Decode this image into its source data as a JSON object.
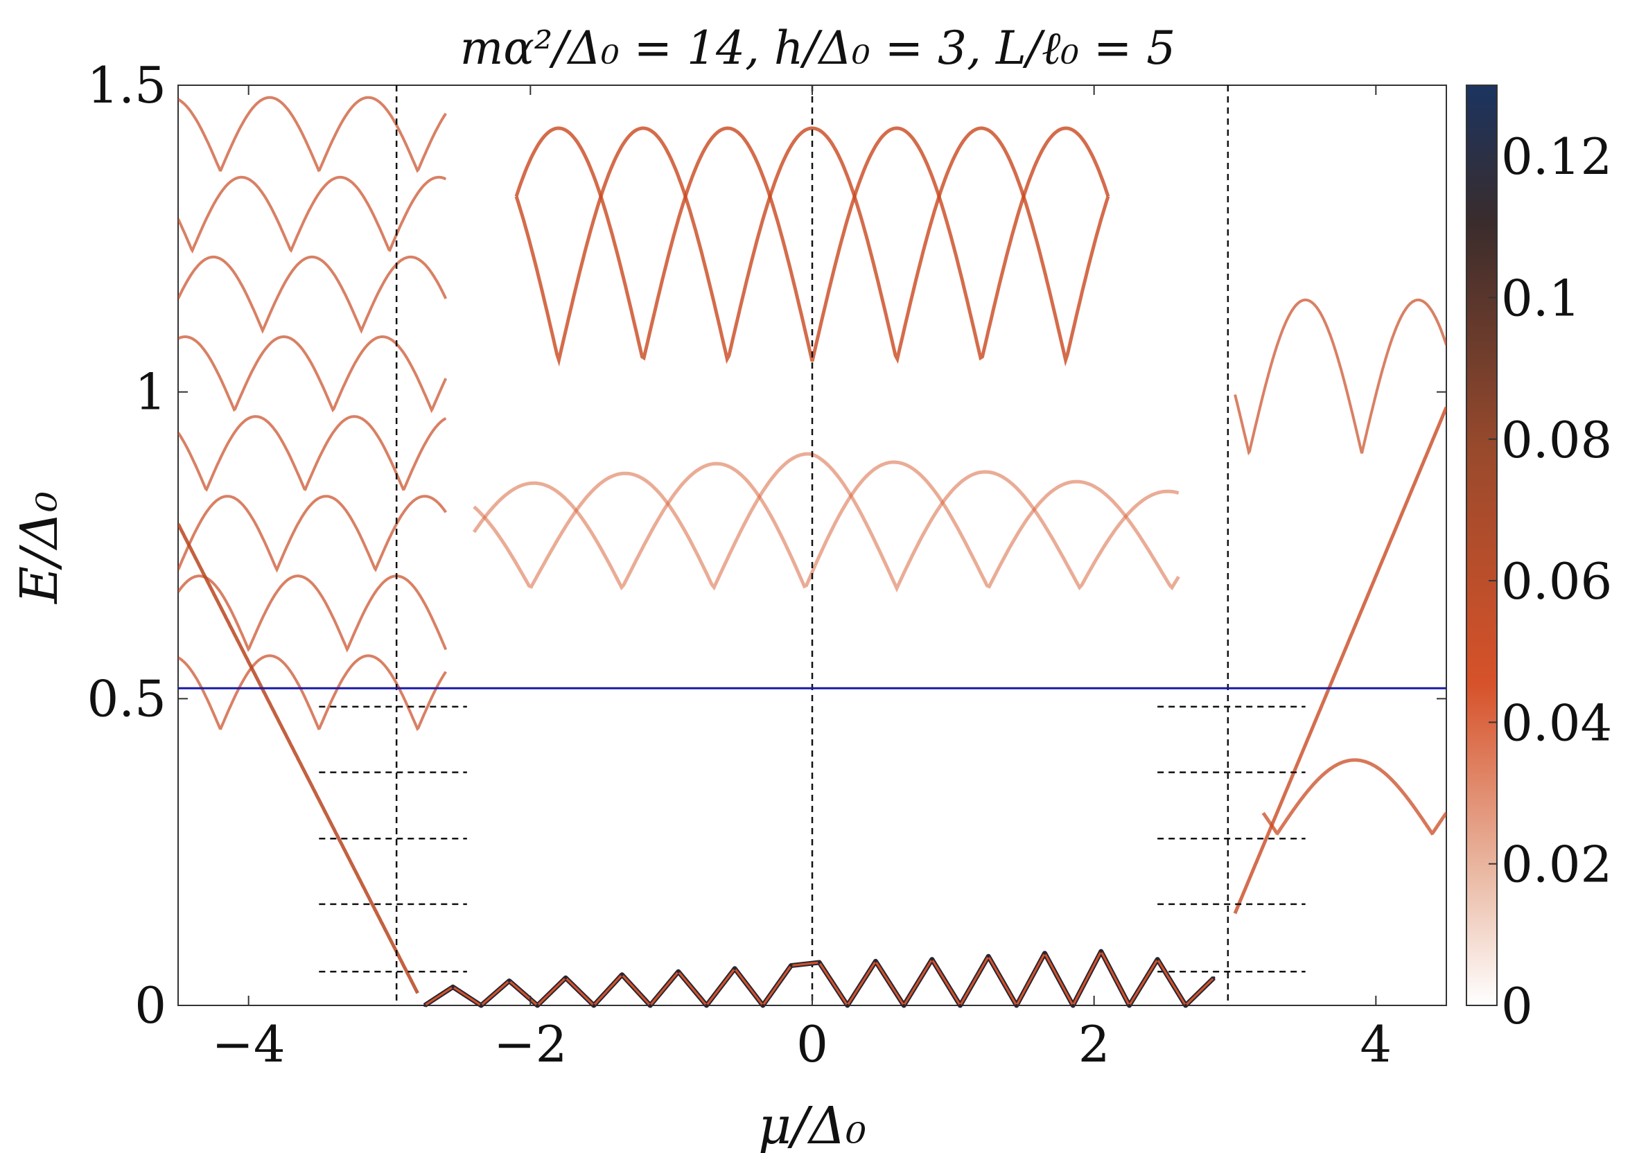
{
  "chart_data": {
    "type": "heatmap",
    "title": "mα²/Δ₀ = 14, h/Δ₀ = 3, L/ℓ₀ = 5",
    "xlabel": "μ/Δ₀",
    "ylabel": "E/Δ₀",
    "xlim": [
      -4.5,
      4.5
    ],
    "ylim": [
      0,
      1.5
    ],
    "xticks": [
      -4,
      -2,
      0,
      2,
      4
    ],
    "xtick_labels": [
      "−4",
      "−2",
      "0",
      "2",
      "4"
    ],
    "yticks": [
      0,
      0.5,
      1,
      1.5
    ],
    "ytick_labels": [
      "0",
      "0.5",
      "1",
      "1.5"
    ],
    "grid": false,
    "colorbar": {
      "range": [
        0,
        0.13
      ],
      "ticks": [
        0,
        0.02,
        0.04,
        0.06,
        0.08,
        0.1,
        0.12
      ],
      "tick_labels": [
        "0",
        "0.02",
        "0.04",
        "0.06",
        "0.08",
        "0.1",
        "0.12"
      ],
      "colors": [
        "#ffffff",
        "#e2a086",
        "#d6522a",
        "#8e4a2e",
        "#2c2b30",
        "#1b3460"
      ]
    },
    "vertical_reference_lines": [
      -2.95,
      0,
      2.95
    ],
    "horizontal_reference_line": {
      "y": 0.517,
      "color": "#1a1aa8"
    },
    "dashed_level_markers": {
      "left_x_range": [
        -3.5,
        -2.45
      ],
      "right_x_range": [
        2.45,
        3.5
      ],
      "left_levels": [
        0.055,
        0.165,
        0.272,
        0.38,
        0.487
      ],
      "right_levels": [
        0.055,
        0.165,
        0.272,
        0.38,
        0.487
      ]
    },
    "series": [
      {
        "description_note": "",
        "zero_energy_oscillation": {
          "x": [
            -2.75,
            -2.55,
            -2.35,
            -2.15,
            -1.95,
            -1.75,
            -1.55,
            -1.35,
            -1.15,
            -0.95,
            -0.75,
            -0.55,
            -0.35,
            -0.15,
            0.05,
            0.25,
            0.45,
            0.65,
            0.85,
            1.05,
            1.25,
            1.45,
            1.65,
            1.85,
            2.05,
            2.25,
            2.45,
            2.65,
            2.85
          ],
          "y": [
            0.0,
            0.03,
            0.0,
            0.04,
            0.0,
            0.045,
            0.0,
            0.05,
            0.0,
            0.055,
            0.0,
            0.06,
            0.0,
            0.065,
            0.07,
            0.0,
            0.072,
            0.0,
            0.075,
            0.0,
            0.08,
            0.0,
            0.085,
            0.0,
            0.088,
            0.0,
            0.075,
            0.0,
            0.045
          ]
        }
      }
    ]
  }
}
